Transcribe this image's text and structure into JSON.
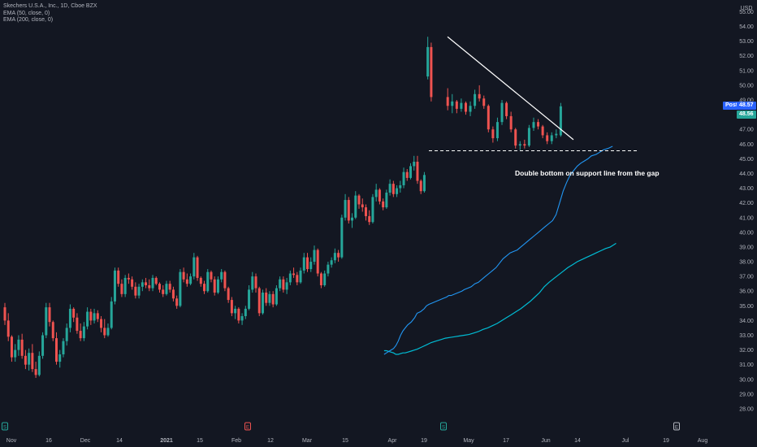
{
  "chart_data": {
    "type": "candlestick",
    "title": "Skechers U.S.A., Inc., 1D, Cboe BZX",
    "indicators": [
      "EMA (50, close, 0)",
      "EMA (200, close, 0)"
    ],
    "currency": "USD",
    "y_ticks": [
      "28.00",
      "29.00",
      "30.00",
      "31.00",
      "32.00",
      "33.00",
      "34.00",
      "35.00",
      "36.00",
      "37.00",
      "38.00",
      "39.00",
      "40.00",
      "41.00",
      "42.00",
      "43.00",
      "44.00",
      "45.00",
      "46.00",
      "47.00",
      "48.00",
      "49.00",
      "50.00",
      "51.00",
      "52.00",
      "53.00",
      "54.00",
      "55.00"
    ],
    "ylim": [
      27.5,
      55.8
    ],
    "x_ticks": [
      "Nov",
      "16",
      "Dec",
      "14",
      "2021",
      "15",
      "Feb",
      "12",
      "Mar",
      "15",
      "Apr",
      "19",
      "May",
      "17",
      "Jun",
      "14",
      "Jul",
      "19",
      "Aug"
    ],
    "price_labels": [
      {
        "label": "Post",
        "value": "48.57",
        "color": "#2962ff"
      },
      {
        "label": "",
        "value": "48.56",
        "color": "#26a69a"
      }
    ],
    "annotation": "Double bottom on support line from the gap",
    "candles": [
      [
        34.9,
        35.2,
        33.7,
        34.0
      ],
      [
        34.0,
        34.5,
        32.6,
        32.9
      ],
      [
        32.9,
        33.0,
        31.2,
        31.5
      ],
      [
        31.5,
        32.4,
        31.2,
        32.0
      ],
      [
        32.0,
        33.0,
        31.6,
        32.7
      ],
      [
        32.7,
        33.1,
        31.4,
        31.6
      ],
      [
        31.6,
        32.0,
        30.7,
        31.0
      ],
      [
        31.0,
        32.1,
        30.6,
        31.8
      ],
      [
        31.8,
        32.4,
        30.5,
        30.7
      ],
      [
        30.7,
        31.2,
        30.1,
        30.3
      ],
      [
        30.3,
        31.9,
        30.2,
        31.6
      ],
      [
        31.6,
        33.2,
        31.4,
        33.0
      ],
      [
        33.0,
        35.2,
        32.8,
        34.9
      ],
      [
        34.9,
        35.2,
        33.6,
        33.9
      ],
      [
        33.9,
        34.0,
        32.6,
        32.8
      ],
      [
        32.8,
        33.2,
        31.0,
        31.2
      ],
      [
        31.2,
        32.0,
        30.8,
        31.7
      ],
      [
        31.7,
        32.8,
        31.5,
        32.6
      ],
      [
        32.6,
        33.8,
        32.3,
        33.5
      ],
      [
        33.5,
        35.1,
        33.2,
        34.8
      ],
      [
        34.8,
        34.9,
        33.9,
        34.2
      ],
      [
        34.2,
        34.5,
        33.1,
        33.3
      ],
      [
        33.3,
        33.8,
        32.6,
        32.8
      ],
      [
        32.8,
        33.9,
        32.6,
        33.6
      ],
      [
        33.6,
        34.9,
        33.4,
        34.6
      ],
      [
        34.6,
        34.8,
        33.7,
        34.0
      ],
      [
        34.0,
        34.8,
        33.8,
        34.5
      ],
      [
        34.5,
        34.7,
        33.9,
        34.1
      ],
      [
        34.1,
        34.3,
        33.2,
        33.5
      ],
      [
        33.5,
        34.1,
        32.8,
        33.0
      ],
      [
        33.0,
        33.8,
        32.9,
        33.5
      ],
      [
        33.5,
        35.6,
        33.4,
        35.3
      ],
      [
        35.3,
        37.6,
        35.1,
        37.4
      ],
      [
        37.4,
        37.6,
        36.3,
        36.5
      ],
      [
        36.5,
        36.8,
        35.6,
        35.8
      ],
      [
        35.8,
        37.1,
        35.6,
        36.9
      ],
      [
        36.9,
        37.2,
        36.5,
        36.8
      ],
      [
        36.8,
        37.0,
        36.1,
        36.3
      ],
      [
        36.3,
        36.6,
        35.5,
        35.7
      ],
      [
        35.7,
        36.5,
        35.5,
        36.3
      ],
      [
        36.3,
        36.8,
        36.0,
        36.6
      ],
      [
        36.6,
        36.9,
        36.2,
        36.4
      ],
      [
        36.4,
        36.8,
        36.0,
        36.2
      ],
      [
        36.2,
        37.1,
        36.0,
        36.9
      ],
      [
        36.9,
        37.0,
        36.4,
        36.5
      ],
      [
        36.5,
        36.6,
        35.9,
        36.1
      ],
      [
        36.1,
        36.4,
        35.6,
        35.8
      ],
      [
        35.8,
        36.7,
        35.7,
        36.5
      ],
      [
        36.5,
        36.7,
        35.9,
        36.1
      ],
      [
        36.1,
        36.3,
        35.3,
        35.5
      ],
      [
        35.5,
        35.7,
        34.8,
        35.0
      ],
      [
        35.0,
        37.5,
        34.9,
        37.3
      ],
      [
        37.3,
        37.6,
        36.6,
        36.8
      ],
      [
        36.8,
        37.2,
        36.3,
        36.5
      ],
      [
        36.5,
        37.2,
        36.4,
        37.0
      ],
      [
        37.0,
        38.6,
        36.8,
        38.3
      ],
      [
        38.3,
        38.4,
        36.7,
        36.9
      ],
      [
        36.9,
        37.0,
        36.3,
        36.5
      ],
      [
        36.5,
        36.7,
        35.8,
        36.0
      ],
      [
        36.0,
        37.5,
        35.9,
        37.3
      ],
      [
        37.3,
        37.4,
        36.6,
        36.8
      ],
      [
        36.8,
        37.0,
        35.7,
        35.9
      ],
      [
        35.9,
        37.0,
        35.8,
        36.8
      ],
      [
        36.8,
        37.5,
        36.6,
        37.3
      ],
      [
        37.3,
        37.4,
        36.0,
        36.2
      ],
      [
        36.2,
        36.3,
        35.2,
        35.4
      ],
      [
        35.4,
        35.6,
        34.3,
        34.5
      ],
      [
        34.5,
        35.0,
        34.1,
        34.8
      ],
      [
        34.8,
        34.9,
        33.8,
        34.0
      ],
      [
        34.0,
        34.5,
        33.7,
        34.3
      ],
      [
        34.3,
        35.0,
        34.1,
        34.8
      ],
      [
        34.8,
        36.4,
        34.7,
        36.1
      ],
      [
        36.1,
        37.3,
        35.9,
        37.0
      ],
      [
        37.0,
        37.2,
        35.9,
        36.2
      ],
      [
        36.2,
        36.3,
        34.3,
        34.5
      ],
      [
        34.5,
        36.1,
        34.4,
        35.9
      ],
      [
        35.9,
        36.2,
        35.0,
        35.2
      ],
      [
        35.2,
        36.0,
        35.0,
        35.8
      ],
      [
        35.8,
        36.0,
        34.9,
        35.1
      ],
      [
        35.1,
        36.4,
        35.0,
        36.2
      ],
      [
        36.2,
        37.0,
        36.0,
        36.8
      ],
      [
        36.8,
        37.0,
        35.9,
        36.1
      ],
      [
        36.1,
        36.9,
        35.8,
        36.6
      ],
      [
        36.6,
        37.4,
        36.4,
        37.2
      ],
      [
        37.2,
        37.6,
        36.9,
        37.1
      ],
      [
        37.1,
        37.3,
        36.4,
        36.6
      ],
      [
        36.6,
        37.6,
        36.5,
        37.4
      ],
      [
        37.4,
        38.6,
        37.2,
        38.3
      ],
      [
        38.3,
        38.6,
        37.3,
        37.5
      ],
      [
        37.5,
        38.3,
        37.3,
        38.0
      ],
      [
        38.0,
        39.1,
        37.8,
        38.8
      ],
      [
        38.8,
        38.9,
        37.0,
        37.2
      ],
      [
        37.2,
        37.3,
        36.2,
        36.4
      ],
      [
        36.4,
        37.4,
        36.3,
        37.2
      ],
      [
        37.2,
        38.0,
        37.0,
        37.8
      ],
      [
        37.8,
        38.3,
        37.6,
        38.1
      ],
      [
        38.1,
        38.9,
        37.9,
        38.6
      ],
      [
        38.6,
        38.8,
        38.0,
        38.3
      ],
      [
        38.3,
        41.2,
        38.2,
        41.0
      ],
      [
        41.0,
        42.6,
        40.8,
        42.2
      ],
      [
        42.2,
        42.4,
        40.6,
        40.8
      ],
      [
        40.8,
        41.3,
        40.3,
        41.0
      ],
      [
        41.0,
        42.8,
        40.9,
        42.5
      ],
      [
        42.5,
        42.6,
        41.6,
        41.9
      ],
      [
        41.9,
        42.3,
        41.4,
        41.7
      ],
      [
        41.7,
        41.9,
        40.8,
        41.1
      ],
      [
        41.1,
        41.5,
        40.5,
        40.7
      ],
      [
        40.7,
        42.6,
        40.6,
        42.4
      ],
      [
        42.4,
        43.3,
        42.1,
        42.9
      ],
      [
        42.9,
        43.0,
        41.9,
        42.1
      ],
      [
        42.1,
        42.3,
        41.5,
        41.7
      ],
      [
        41.7,
        42.9,
        41.6,
        42.7
      ],
      [
        42.7,
        43.6,
        42.5,
        43.3
      ],
      [
        43.3,
        43.5,
        42.4,
        42.6
      ],
      [
        42.6,
        43.2,
        42.4,
        43.0
      ],
      [
        43.0,
        43.5,
        42.7,
        43.2
      ],
      [
        43.2,
        44.4,
        43.0,
        44.1
      ],
      [
        44.1,
        44.3,
        43.5,
        43.7
      ],
      [
        43.7,
        44.7,
        43.6,
        44.5
      ],
      [
        44.5,
        45.2,
        44.2,
        44.8
      ],
      [
        44.8,
        45.2,
        43.3,
        43.5
      ],
      [
        43.5,
        43.6,
        42.6,
        42.8
      ],
      [
        42.8,
        44.1,
        42.7,
        43.9
      ],
      [
        50.6,
        53.3,
        50.4,
        52.6
      ],
      [
        52.6,
        52.9,
        48.9,
        49.2
      ],
      [
        49.2,
        49.8,
        48.3,
        48.6
      ],
      [
        48.6,
        49.4,
        48.1,
        48.9
      ],
      [
        48.9,
        49.0,
        48.1,
        48.4
      ],
      [
        48.4,
        49.1,
        48.2,
        48.8
      ],
      [
        48.8,
        48.9,
        48.0,
        48.2
      ],
      [
        48.2,
        48.9,
        47.9,
        48.6
      ],
      [
        48.6,
        49.7,
        48.4,
        49.4
      ],
      [
        49.4,
        50.0,
        48.9,
        49.1
      ],
      [
        49.1,
        49.3,
        48.4,
        48.6
      ],
      [
        48.6,
        48.7,
        46.8,
        47.0
      ],
      [
        47.0,
        47.2,
        46.1,
        46.4
      ],
      [
        46.4,
        47.8,
        46.2,
        47.5
      ],
      [
        47.5,
        49.0,
        47.3,
        48.8
      ],
      [
        48.8,
        48.9,
        47.7,
        47.9
      ],
      [
        47.9,
        48.2,
        46.8,
        47.0
      ],
      [
        47.0,
        47.1,
        45.7,
        45.9
      ],
      [
        45.9,
        46.2,
        45.6,
        46.0
      ],
      [
        46.0,
        46.3,
        45.7,
        45.9
      ],
      [
        45.9,
        47.3,
        45.8,
        47.1
      ],
      [
        47.1,
        47.8,
        46.9,
        47.5
      ],
      [
        47.5,
        47.7,
        47.0,
        47.2
      ],
      [
        47.2,
        47.3,
        46.4,
        46.6
      ],
      [
        46.6,
        46.8,
        46.0,
        46.2
      ],
      [
        46.2,
        46.8,
        46.0,
        46.6
      ],
      [
        46.6,
        47.0,
        46.4,
        46.7
      ],
      [
        46.6,
        48.8,
        46.5,
        48.57
      ]
    ],
    "ema50": [
      [
        32.2,
        31.7
      ],
      [
        32.4,
        31.8
      ],
      [
        32.6,
        31.9
      ],
      [
        32.8,
        32.0
      ],
      [
        33.0,
        32.1
      ],
      [
        33.2,
        32.3
      ],
      [
        33.4,
        32.6
      ],
      [
        33.6,
        33.0
      ],
      [
        33.8,
        33.3
      ],
      [
        34.0,
        33.5
      ],
      [
        34.2,
        33.7
      ],
      [
        34.5,
        33.9
      ],
      [
        34.8,
        34.2
      ],
      [
        35.0,
        34.5
      ],
      [
        35.3,
        34.6
      ],
      [
        35.6,
        34.8
      ],
      [
        35.8,
        35.0
      ],
      [
        36.0,
        35.1
      ],
      [
        36.3,
        35.2
      ],
      [
        36.6,
        35.3
      ],
      [
        36.9,
        35.4
      ],
      [
        37.2,
        35.5
      ],
      [
        37.5,
        35.6
      ],
      [
        37.7,
        35.7
      ],
      [
        37.9,
        35.7
      ],
      [
        38.2,
        35.8
      ],
      [
        38.5,
        35.9
      ],
      [
        38.8,
        36.0
      ],
      [
        39.0,
        36.1
      ],
      [
        39.3,
        36.2
      ],
      [
        39.6,
        36.3
      ],
      [
        39.9,
        36.5
      ],
      [
        40.2,
        36.6
      ],
      [
        40.5,
        36.8
      ],
      [
        40.8,
        37.0
      ],
      [
        41.1,
        37.2
      ],
      [
        41.4,
        37.4
      ],
      [
        41.7,
        37.6
      ],
      [
        42.0,
        37.9
      ],
      [
        42.3,
        38.2
      ],
      [
        42.6,
        38.4
      ],
      [
        42.9,
        38.6
      ],
      [
        43.2,
        38.7
      ],
      [
        43.5,
        38.8
      ],
      [
        43.8,
        39.0
      ],
      [
        44.1,
        39.2
      ],
      [
        44.4,
        39.4
      ],
      [
        44.7,
        39.6
      ],
      [
        45.0,
        39.8
      ],
      [
        45.3,
        40.0
      ],
      [
        45.6,
        40.2
      ],
      [
        45.9,
        40.4
      ],
      [
        46.2,
        40.6
      ],
      [
        46.5,
        40.8
      ],
      [
        46.8,
        41.2
      ],
      [
        47.1,
        42.0
      ],
      [
        47.4,
        42.8
      ],
      [
        47.7,
        43.4
      ],
      [
        48.0,
        43.9
      ],
      [
        48.3,
        44.2
      ],
      [
        48.6,
        44.5
      ],
      [
        48.9,
        44.7
      ],
      [
        49.2,
        44.85
      ],
      [
        49.5,
        45.0
      ],
      [
        49.8,
        45.2
      ],
      [
        50.2,
        45.3
      ],
      [
        50.5,
        45.45
      ],
      [
        50.8,
        45.6
      ],
      [
        51.2,
        45.7
      ],
      [
        51.6,
        45.85
      ]
    ],
    "ema200": [
      [
        32.2,
        31.95
      ],
      [
        32.4,
        31.95
      ],
      [
        32.6,
        31.9
      ],
      [
        32.8,
        31.85
      ],
      [
        33.0,
        31.8
      ],
      [
        33.2,
        31.7
      ],
      [
        33.4,
        31.7
      ],
      [
        33.6,
        31.75
      ],
      [
        33.8,
        31.8
      ],
      [
        34.0,
        31.8
      ],
      [
        34.2,
        31.85
      ],
      [
        34.6,
        31.95
      ],
      [
        35.0,
        32.05
      ],
      [
        35.4,
        32.2
      ],
      [
        35.8,
        32.35
      ],
      [
        36.2,
        32.5
      ],
      [
        36.6,
        32.6
      ],
      [
        37.0,
        32.7
      ],
      [
        37.4,
        32.8
      ],
      [
        37.8,
        32.85
      ],
      [
        38.2,
        32.9
      ],
      [
        38.6,
        32.95
      ],
      [
        39.0,
        33.0
      ],
      [
        39.4,
        33.05
      ],
      [
        39.8,
        33.15
      ],
      [
        40.2,
        33.25
      ],
      [
        40.6,
        33.4
      ],
      [
        41.0,
        33.5
      ],
      [
        41.4,
        33.65
      ],
      [
        41.8,
        33.8
      ],
      [
        42.2,
        34.0
      ],
      [
        42.6,
        34.2
      ],
      [
        43.0,
        34.4
      ],
      [
        43.4,
        34.6
      ],
      [
        43.8,
        34.8
      ],
      [
        44.2,
        35.05
      ],
      [
        44.6,
        35.3
      ],
      [
        45.0,
        35.6
      ],
      [
        45.4,
        35.9
      ],
      [
        45.8,
        36.3
      ],
      [
        46.2,
        36.6
      ],
      [
        46.6,
        36.85
      ],
      [
        47.0,
        37.1
      ],
      [
        47.4,
        37.35
      ],
      [
        47.8,
        37.6
      ],
      [
        48.2,
        37.8
      ],
      [
        48.6,
        38.0
      ],
      [
        49.0,
        38.15
      ],
      [
        49.4,
        38.3
      ],
      [
        49.8,
        38.45
      ],
      [
        50.2,
        38.6
      ],
      [
        50.6,
        38.75
      ],
      [
        51.0,
        38.9
      ],
      [
        51.4,
        39.0
      ],
      [
        51.6,
        39.1
      ],
      [
        51.9,
        39.25
      ]
    ],
    "resistance_line": [
      [
        41.5,
        53.3
      ],
      [
        53.3,
        46.3
      ]
    ],
    "support_line": [
      [
        40.5,
        45.55
      ],
      [
        53.0,
        45.55
      ]
    ],
    "markers": [
      {
        "x": 0.6,
        "label": "S",
        "color": "#26a69a"
      },
      {
        "x": 20.5,
        "label": "E",
        "color": "#ef5350"
      },
      {
        "x": 41.6,
        "label": "S",
        "color": "#26a69a"
      },
      {
        "x": 63.8,
        "label": "E",
        "color": "#b2b5be"
      }
    ],
    "colors": {
      "background": "#131722",
      "up": "#26a69a",
      "down": "#ef5350",
      "ema50": "#2196f3",
      "ema200": "#00bcd4",
      "axis_text": "#b2b5be",
      "annotation": "#ffffff"
    }
  }
}
